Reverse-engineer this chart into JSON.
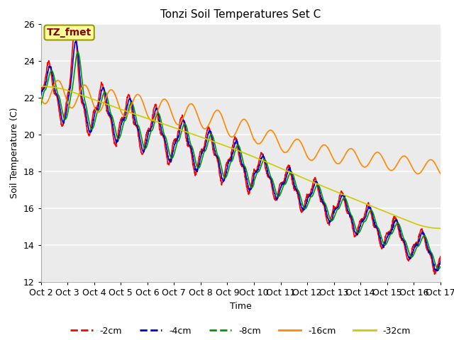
{
  "title": "Tonzi Soil Temperatures Set C",
  "xlabel": "Time",
  "ylabel": "Soil Temperature (C)",
  "annotation": "TZ_fmet",
  "ylim": [
    12,
    26
  ],
  "xlim": [
    0,
    360
  ],
  "fig_color": "#ffffff",
  "plot_bg": "#ebebeb",
  "series_colors": [
    "#ff0000",
    "#0000cc",
    "#009900",
    "#ff8800",
    "#cccc00"
  ],
  "series_labels": [
    "-2cm",
    "-4cm",
    "-8cm",
    "-16cm",
    "-32cm"
  ],
  "xtick_labels": [
    "Oct 2",
    "Oct 3",
    "Oct 4",
    "Oct 5",
    "Oct 6",
    "Oct 7",
    "Oct 8",
    "Oct 9",
    "Oct 10",
    "Oct 11",
    "Oct 12",
    "Oct 13",
    "Oct 14",
    "Oct 15",
    "Oct 16",
    "Oct 17"
  ],
  "xtick_positions": [
    0,
    24,
    48,
    72,
    96,
    120,
    144,
    168,
    192,
    216,
    240,
    264,
    288,
    312,
    336,
    360
  ],
  "ytick_positions": [
    12,
    14,
    16,
    18,
    20,
    22,
    24,
    26
  ]
}
